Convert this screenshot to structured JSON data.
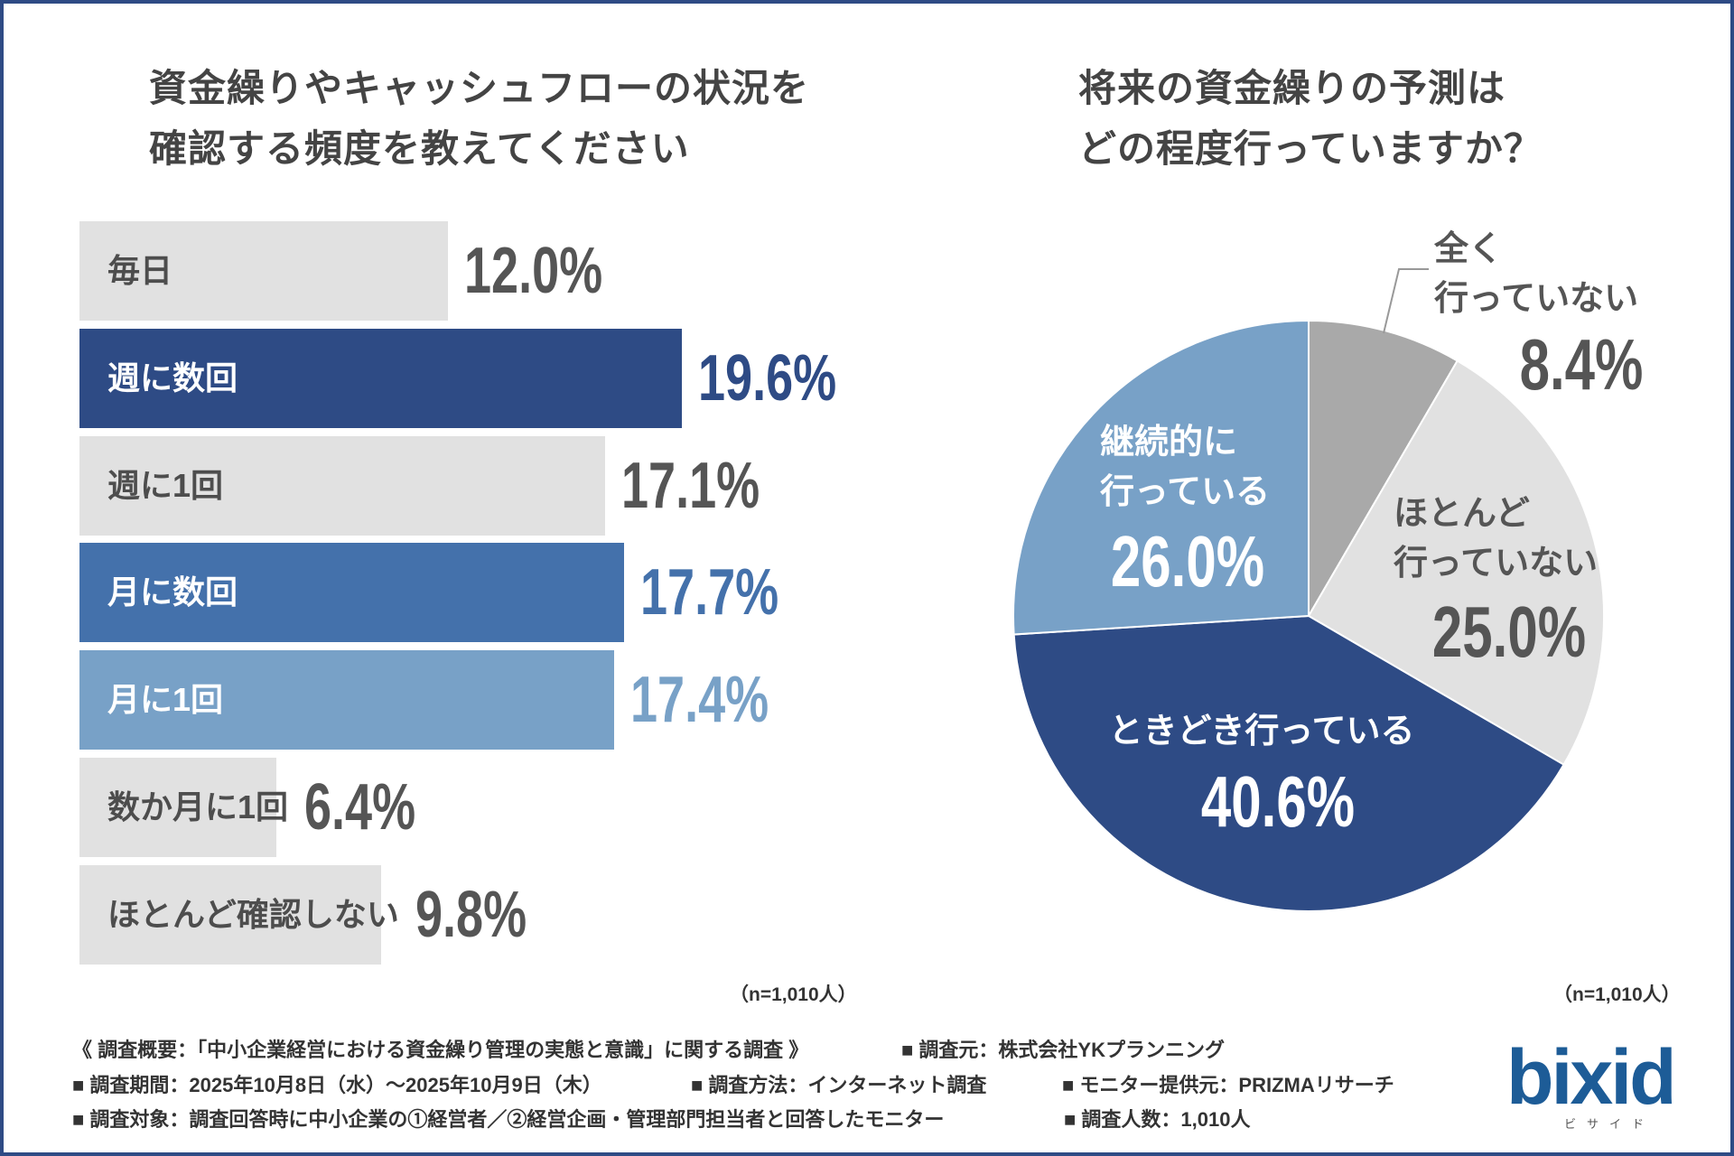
{
  "page": {
    "border_color": "#2e4b85"
  },
  "chart_data": [
    {
      "type": "bar",
      "title_lines": [
        "資金繰りやキャッシュフローの状況を",
        "確認する頻度を教えてください"
      ],
      "note": "（n=1,010人）",
      "categories": [
        "毎日",
        "週に数回",
        "週に1回",
        "月に数回",
        "月に1回",
        "数か月に1回",
        "ほとんど確認しない"
      ],
      "values": [
        12.0,
        19.6,
        17.1,
        17.7,
        17.4,
        6.4,
        9.8
      ],
      "value_labels": [
        "12.0%",
        "19.6%",
        "17.1%",
        "17.7%",
        "17.4%",
        "6.4%",
        "9.8%"
      ],
      "bar_colors": [
        "#e1e1e1",
        "#2e4b85",
        "#e1e1e1",
        "#4471ab",
        "#78a1c7",
        "#e1e1e1",
        "#e1e1e1"
      ],
      "label_colors": [
        "#4d4d4d",
        "#ffffff",
        "#4d4d4d",
        "#ffffff",
        "#ffffff",
        "#4d4d4d",
        "#4d4d4d"
      ],
      "value_colors": [
        "#555555",
        "#2e4b85",
        "#555555",
        "#4471ab",
        "#78a1c7",
        "#555555",
        "#555555"
      ]
    },
    {
      "type": "pie",
      "title_lines": [
        "将来の資金繰りの予測は",
        "どの程度行っていますか？"
      ],
      "note": "（n=1,010人）",
      "slices": [
        {
          "label_lines": [
            "全く",
            "行っていない"
          ],
          "value": 8.4,
          "value_label": "8.4%",
          "color": "#a9a9a9",
          "text_color": "#555555"
        },
        {
          "label_lines": [
            "ほとんど",
            "行っていない"
          ],
          "value": 25.0,
          "value_label": "25.0%",
          "color": "#e1e1e1",
          "text_color": "#555555"
        },
        {
          "label_lines": [
            "ときどき行っている"
          ],
          "value": 40.6,
          "value_label": "40.6%",
          "color": "#2e4b85",
          "text_color": "#ffffff"
        },
        {
          "label_lines": [
            "継続的に",
            "行っている"
          ],
          "value": 26.0,
          "value_label": "26.0%",
          "color": "#78a1c7",
          "text_color": "#ffffff"
        }
      ]
    }
  ],
  "footer": {
    "rows": [
      [
        "《 調査概要：「中小企業経営における資金繰り管理の実態と意識」に関する調査 》",
        "■ 調査元：株式会社YKプランニング"
      ],
      [
        "■ 調査期間：2025年10月8日（水）～2025年10月9日（木）",
        "■ 調査方法：インターネット調査",
        "■ モニター提供元：PRIZMAリサーチ"
      ],
      [
        "■ 調査対象：調査回答時に中小企業の①経営者／②経営企画・管理部門担当者と回答したモニター",
        "■ 調査人数：1,010人"
      ]
    ]
  },
  "logo": {
    "wordmark": "bixid",
    "subtext": "ビサイド",
    "color": "#1d5c97"
  }
}
